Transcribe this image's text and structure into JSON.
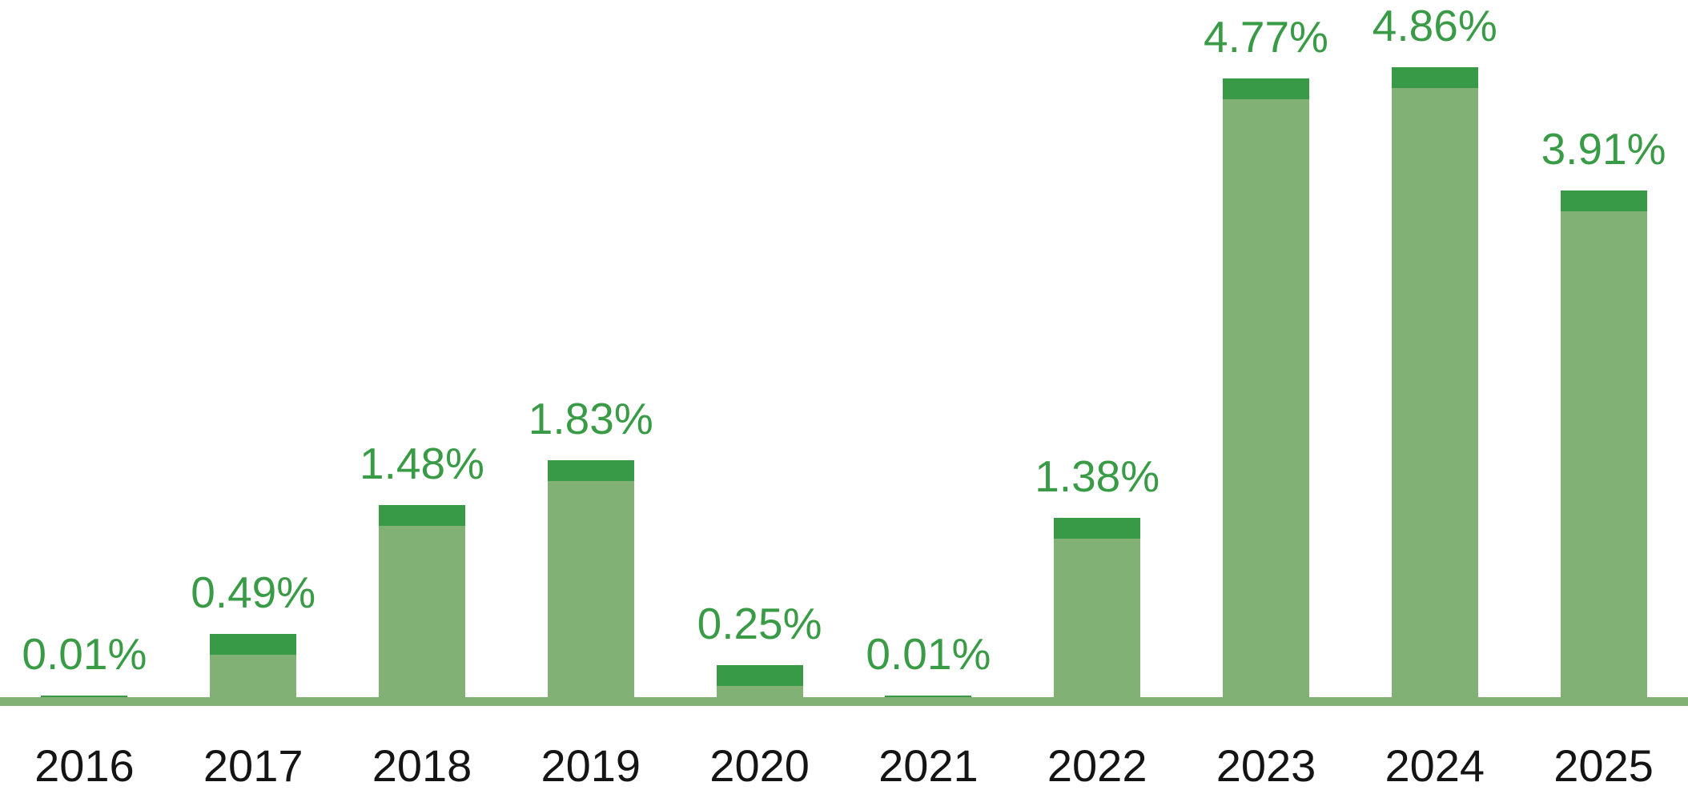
{
  "chart_data": {
    "type": "bar",
    "title": "",
    "xlabel": "",
    "ylabel": "",
    "categories": [
      "2016",
      "2017",
      "2018",
      "2019",
      "2020",
      "2021",
      "2022",
      "2023",
      "2024",
      "2025"
    ],
    "values": [
      0.01,
      0.49,
      1.48,
      1.83,
      0.25,
      0.01,
      1.38,
      4.77,
      4.86,
      3.91
    ],
    "value_labels": [
      "0.01%",
      "0.49%",
      "1.48%",
      "1.83%",
      "0.25%",
      "0.01%",
      "1.38%",
      "4.77%",
      "4.86%",
      "3.91%"
    ],
    "ylim": [
      0,
      5.38
    ],
    "grid": false,
    "legend": false,
    "y_axis_visible": false,
    "colors": {
      "bar_body": "#82B176",
      "bar_cap": "#389A46",
      "value_label": "#3A9B47",
      "axis_line": "#82B176",
      "tick_label": "#141414",
      "background": "#FFFFFF"
    }
  }
}
